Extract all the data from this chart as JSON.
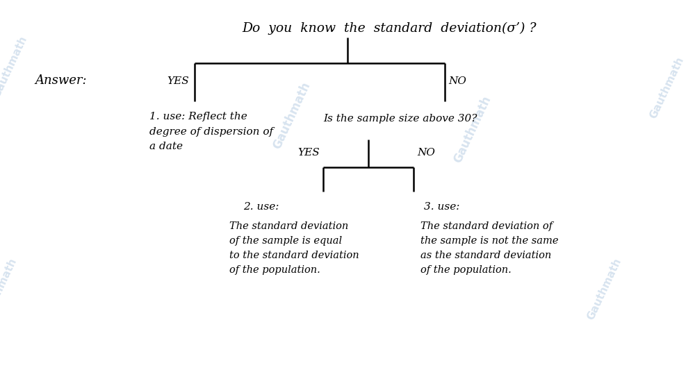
{
  "bg_color": "#ffffff",
  "title": "Do  you  know  the  standard  deviation(σ’) ?",
  "answer_label": "Answer:",
  "yes_label_1": "YES",
  "no_label_1": "NO",
  "use1_text": "1. use: Reflect the\ndegree of dispersion of\na date",
  "question2": "Is the sample size above 30?",
  "yes_label_2": "YES",
  "no_label_2": "NO",
  "use2_title": "2. use:",
  "use2_body": "The standard deviation\nof the sample is equal\nto the standard deviation\nof the population.",
  "use3_title": "3. use:",
  "use3_body": "The standard deviation of\nthe sample is not the same\nas the standard deviation\nof the population.",
  "font_color": "#000000",
  "watermark_color": "#b0c8e0",
  "figsize": [
    10.0,
    5.46
  ],
  "dpi": 100,
  "xlim": [
    0,
    10
  ],
  "ylim": [
    0,
    5.46
  ]
}
